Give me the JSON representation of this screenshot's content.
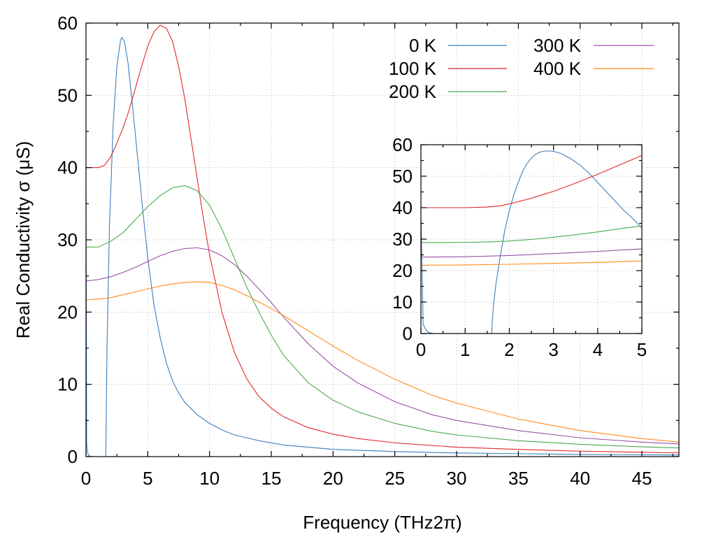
{
  "chart_data": {
    "type": "line",
    "xlabel": "Frequency (THz2π)",
    "ylabel": "Real Conductivity σ (μS)",
    "xlim": [
      0,
      48
    ],
    "ylim": [
      0,
      60
    ],
    "xticks": [
      0,
      5,
      10,
      15,
      20,
      25,
      30,
      35,
      40,
      45
    ],
    "yticks": [
      0,
      10,
      20,
      30,
      40,
      50,
      60
    ],
    "grid": true,
    "legend": {
      "position": "top-right",
      "columns": 2
    },
    "series": [
      {
        "name": "0 K",
        "color": "#3a7fbd",
        "x": [
          0,
          0.05,
          0.1,
          0.2,
          0.4,
          1.0,
          1.6,
          1.7,
          1.9,
          2.2,
          2.5,
          2.8,
          2.9,
          3.1,
          3.4,
          3.8,
          4.2,
          4.6,
          5.0,
          5.5,
          6.0,
          6.5,
          7.0,
          7.5,
          8.0,
          9.0,
          10.0,
          11.0,
          12.0,
          14.0,
          16.0,
          20.0,
          25.0,
          30.0,
          35.0,
          40.0,
          45.0,
          48.0
        ],
        "y": [
          37,
          2,
          0.8,
          0.2,
          0,
          0,
          0,
          15,
          32,
          46,
          54,
          57.7,
          58,
          57.5,
          54.5,
          48,
          41,
          34,
          27.5,
          21,
          16.5,
          13,
          10.5,
          8.8,
          7.5,
          5.8,
          4.6,
          3.7,
          3.0,
          2.2,
          1.6,
          1.0,
          0.7,
          0.5,
          0.4,
          0.3,
          0.25,
          0.22
        ]
      },
      {
        "name": "100 K",
        "color": "#e3262a",
        "x": [
          0,
          0.5,
          1.0,
          1.5,
          2.0,
          2.5,
          3.0,
          3.5,
          4.0,
          4.5,
          5.0,
          5.5,
          6.0,
          6.5,
          7.0,
          7.5,
          8.0,
          8.5,
          9.0,
          9.5,
          10.0,
          11.0,
          12.0,
          13.0,
          14.0,
          15.0,
          16.0,
          18.0,
          20.0,
          22.0,
          25.0,
          30.0,
          35.0,
          40.0,
          45.0,
          48.0
        ],
        "y": [
          40,
          40,
          40,
          40.3,
          41.5,
          43.4,
          45.5,
          48,
          51,
          54,
          56.8,
          58.8,
          59.7,
          59.3,
          57.5,
          54,
          49.5,
          44,
          38.5,
          33,
          28,
          20,
          14.5,
          10.8,
          8.3,
          6.7,
          5.5,
          4.0,
          3.1,
          2.5,
          1.9,
          1.3,
          1.0,
          0.75,
          0.6,
          0.52
        ]
      },
      {
        "name": "200 K",
        "color": "#4aab4a",
        "x": [
          0,
          1,
          2,
          3,
          4,
          5,
          6,
          7,
          8,
          9,
          10,
          11,
          12,
          13,
          14,
          15,
          16,
          18,
          20,
          22,
          25,
          28,
          30,
          35,
          40,
          45,
          48
        ],
        "y": [
          29,
          29,
          29.8,
          31,
          32.8,
          34.6,
          36.1,
          37.2,
          37.5,
          36.8,
          34.8,
          31.5,
          27.5,
          23.5,
          20,
          16.8,
          14,
          10.2,
          7.8,
          6.2,
          4.6,
          3.5,
          3.0,
          2.2,
          1.7,
          1.35,
          1.2
        ]
      },
      {
        "name": "300 K",
        "color": "#9a50a8",
        "x": [
          0,
          1,
          2,
          3,
          4,
          5,
          6,
          7,
          8,
          9,
          10,
          11,
          12,
          13,
          14,
          15,
          16,
          18,
          20,
          22,
          25,
          28,
          30,
          35,
          40,
          45,
          48
        ],
        "y": [
          24.3,
          24.5,
          24.9,
          25.5,
          26.2,
          27,
          27.8,
          28.4,
          28.8,
          28.9,
          28.6,
          27.8,
          26.6,
          25,
          23.2,
          21.3,
          19.3,
          15.6,
          12.5,
          10.2,
          7.6,
          5.8,
          5.0,
          3.6,
          2.6,
          2.0,
          1.75
        ]
      },
      {
        "name": "400 K",
        "color": "#ff8a18",
        "x": [
          0,
          1,
          2,
          3,
          4,
          5,
          6,
          7,
          8,
          9,
          10,
          11,
          12,
          13,
          14,
          15,
          16,
          18,
          20,
          22,
          25,
          28,
          30,
          35,
          40,
          45,
          48
        ],
        "y": [
          21.7,
          21.8,
          22,
          22.4,
          22.8,
          23.2,
          23.6,
          23.9,
          24.1,
          24.2,
          24.1,
          23.7,
          23.1,
          22.3,
          21.4,
          20.5,
          19.5,
          17.4,
          15.3,
          13.3,
          10.7,
          8.5,
          7.4,
          5.2,
          3.6,
          2.5,
          2.0
        ]
      }
    ],
    "inset": {
      "xlim": [
        0,
        5
      ],
      "ylim": [
        0,
        60
      ],
      "xticks": [
        0,
        1,
        2,
        3,
        4,
        5
      ],
      "yticks": [
        0,
        10,
        20,
        30,
        40,
        50,
        60
      ],
      "grid": true,
      "series": [
        {
          "name": "0 K",
          "x": [
            0,
            0.02,
            0.05,
            0.08,
            0.1,
            0.15,
            0.2,
            0.3,
            1.6,
            1.62,
            1.65,
            1.7,
            1.8,
            1.9,
            2.0,
            2.1,
            2.2,
            2.3,
            2.4,
            2.5,
            2.6,
            2.7,
            2.8,
            2.9,
            3.0,
            3.1,
            3.2,
            3.4,
            3.6,
            3.8,
            4.0,
            4.2,
            4.4,
            4.6,
            4.8,
            5.0
          ],
          "y": [
            37,
            25,
            3,
            2,
            1.5,
            0.5,
            0.2,
            0,
            0,
            5,
            10,
            16,
            25,
            33,
            39,
            44,
            48,
            51.5,
            54,
            55.8,
            57,
            57.7,
            58,
            58,
            57.9,
            57.5,
            57,
            55.5,
            53.5,
            51,
            48,
            45,
            42,
            39,
            36.5,
            33.5
          ]
        },
        {
          "name": "100 K",
          "x": [
            0,
            0.5,
            1.0,
            1.5,
            1.8,
            2.0,
            2.2,
            2.5,
            3.0,
            3.5,
            4.0,
            4.5,
            5.0
          ],
          "y": [
            40,
            40,
            40,
            40.2,
            40.6,
            41.2,
            41.9,
            43,
            45.2,
            47.8,
            50.6,
            53.6,
            56.6
          ]
        },
        {
          "name": "200 K",
          "x": [
            0,
            0.5,
            1.0,
            1.5,
            2.0,
            2.5,
            3.0,
            3.5,
            4.0,
            4.5,
            5.0
          ],
          "y": [
            28.9,
            28.9,
            29,
            29.1,
            29.4,
            29.9,
            30.6,
            31.4,
            32.3,
            33.3,
            34.2
          ]
        },
        {
          "name": "300 K",
          "x": [
            0,
            1,
            2,
            3,
            4,
            5
          ],
          "y": [
            24.3,
            24.4,
            24.8,
            25.4,
            26.1,
            26.9
          ]
        },
        {
          "name": "400 K",
          "x": [
            0,
            1,
            2,
            3,
            4,
            5
          ],
          "y": [
            21.7,
            21.8,
            22,
            22.3,
            22.6,
            23.1
          ]
        }
      ]
    }
  }
}
